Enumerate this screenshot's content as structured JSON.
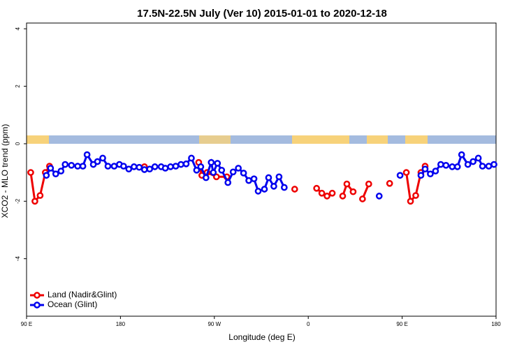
{
  "chart_data": {
    "type": "line",
    "title": "17.5N-22.5N July (Ver 10)   2015-01-01 to 2020-12-18",
    "x_label": "Longitude (deg E)",
    "y_label": "XCO2 - MLO trend (ppm)",
    "xlim": [
      90,
      540
    ],
    "ylim": [
      -6,
      4.2
    ],
    "xticks": [
      {
        "value": 90,
        "label": "90 E"
      },
      180,
      {
        "value": 270,
        "label": "90 W"
      },
      {
        "value": 360,
        "label": "0"
      },
      {
        "value": 450,
        "label": "90 E"
      },
      {
        "value": 540,
        "label": "180"
      }
    ],
    "yticks": [
      -4,
      -2,
      0,
      2,
      4
    ],
    "legend": "bottom-left",
    "series": [
      {
        "name": "Land (Nadir&Glint)",
        "color": "#ee0000",
        "x": [
          94,
          98,
          103,
          108,
          112,
          null,
          203,
          null,
          255,
          258,
          263,
          272,
          282,
          null,
          347,
          null,
          368,
          373,
          378,
          383,
          null,
          393,
          397,
          403,
          null,
          412,
          418,
          null,
          438,
          null,
          454,
          458,
          463,
          468,
          472
        ],
        "values": [
          -1.0,
          -2.0,
          -1.8,
          -1.0,
          -0.78,
          null,
          -0.8,
          null,
          -0.65,
          -1.1,
          -1.0,
          -1.15,
          -1.15,
          null,
          -1.58,
          null,
          -1.55,
          -1.72,
          -1.82,
          -1.72,
          null,
          -1.82,
          -1.4,
          -1.67,
          null,
          -1.92,
          -1.4,
          null,
          -1.38,
          null,
          -1.0,
          -2.0,
          -1.8,
          -1.0,
          -0.78
        ]
      },
      {
        "name": "Ocean (Glint)",
        "color": "#0000ee",
        "x": [
          109,
          113,
          118,
          123,
          127,
          133,
          139,
          144,
          148,
          154,
          158,
          163,
          168,
          174,
          179,
          183,
          188,
          193,
          198,
          203,
          208,
          213,
          219,
          223,
          228,
          233,
          238,
          243,
          248,
          253,
          257,
          262,
          267,
          269,
          273,
          277,
          283,
          288,
          293,
          298,
          303,
          308,
          312,
          318,
          322,
          327,
          332,
          337,
          null,
          428,
          null,
          448,
          null,
          468,
          472,
          477,
          482,
          487,
          492,
          498,
          503,
          507,
          513,
          518,
          523,
          527,
          533,
          538
        ],
        "values": [
          -1.1,
          -0.85,
          -1.05,
          -0.95,
          -0.72,
          -0.75,
          -0.78,
          -0.78,
          -0.38,
          -0.72,
          -0.62,
          -0.5,
          -0.78,
          -0.78,
          -0.72,
          -0.78,
          -0.88,
          -0.8,
          -0.82,
          -0.9,
          -0.88,
          -0.8,
          -0.8,
          -0.85,
          -0.8,
          -0.78,
          -0.72,
          -0.7,
          -0.5,
          -0.92,
          -0.8,
          -1.18,
          -0.65,
          -1.0,
          -0.68,
          -0.92,
          -1.35,
          -0.98,
          -0.85,
          -1.02,
          -1.28,
          -1.22,
          -1.65,
          -1.58,
          -1.18,
          -1.48,
          -1.15,
          -1.52,
          null,
          -1.82,
          null,
          -1.1,
          null,
          -1.1,
          -0.88,
          -1.05,
          -0.95,
          -0.72,
          -0.75,
          -0.8,
          -0.8,
          -0.38,
          -0.72,
          -0.62,
          -0.5,
          -0.78,
          -0.78,
          -0.72
        ]
      }
    ]
  }
}
